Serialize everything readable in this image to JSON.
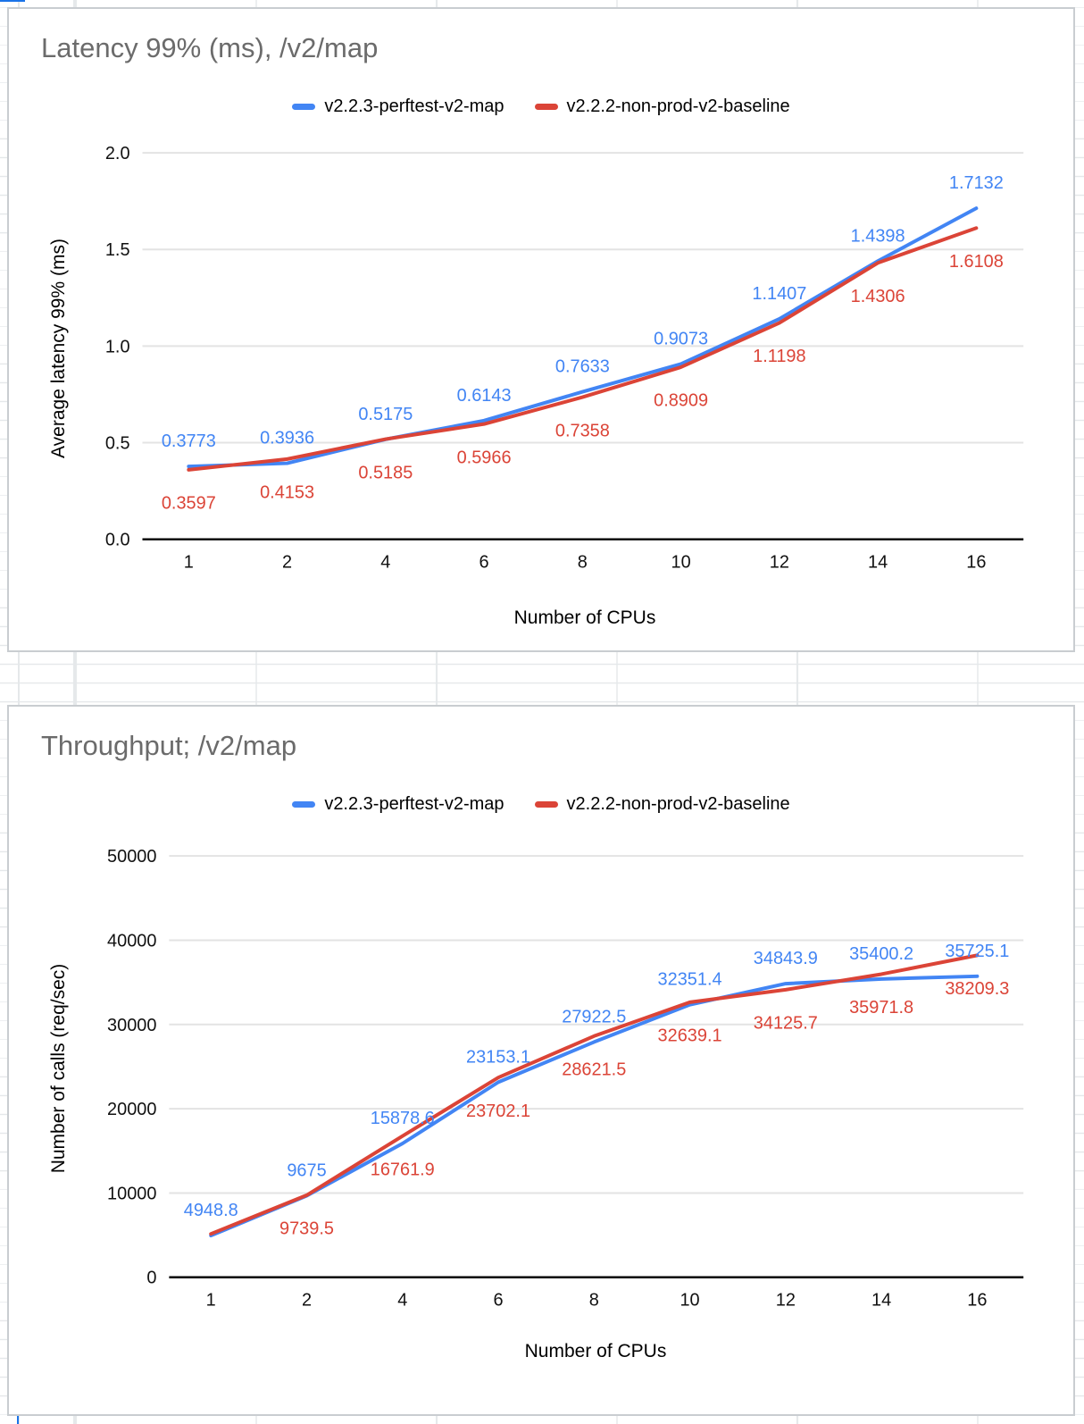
{
  "colors": {
    "series_blue": "#4285f4",
    "series_red": "#db4437",
    "title_gray": "#6b6b6b",
    "gridline": "#e3e3e3",
    "axis_black": "#000000",
    "selection_blue": "#1a73e8"
  },
  "chart_data": [
    {
      "type": "line",
      "title": "Latency 99% (ms), /v2/map",
      "xlabel": "Number of CPUs",
      "ylabel": "Average latency 99% (ms)",
      "categories": [
        "1",
        "2",
        "4",
        "6",
        "8",
        "10",
        "12",
        "14",
        "16"
      ],
      "ylim": [
        0,
        2
      ],
      "yticks": [
        0,
        0.5,
        1,
        1.5,
        2
      ],
      "ytick_labels": [
        "0.0",
        "0.5",
        "1.0",
        "1.5",
        "2.0"
      ],
      "grid": true,
      "legend_position": "top",
      "series": [
        {
          "name": "v2.2.3-perftest-v2-map",
          "color": "#4285f4",
          "label_side": "above",
          "values": [
            0.3773,
            0.3936,
            0.5175,
            0.6143,
            0.7633,
            0.9073,
            1.1407,
            1.4398,
            1.7132
          ],
          "point_labels": [
            "0.3773",
            "0.3936",
            "0.5175",
            "0.6143",
            "0.7633",
            "0.9073",
            "1.1407",
            "1.4398",
            "1.7132"
          ]
        },
        {
          "name": "v2.2.2-non-prod-v2-baseline",
          "color": "#db4437",
          "label_side": "below",
          "values": [
            0.3597,
            0.4153,
            0.5185,
            0.5966,
            0.7358,
            0.8909,
            1.1198,
            1.4306,
            1.6108
          ],
          "point_labels": [
            "0.3597",
            "0.4153",
            "0.5185",
            "0.5966",
            "0.7358",
            "0.8909",
            "1.1198",
            "1.4306",
            "1.6108"
          ]
        }
      ]
    },
    {
      "type": "line",
      "title": "Throughput; /v2/map",
      "xlabel": "Number of CPUs",
      "ylabel": "Number of calls (req/sec)",
      "categories": [
        "1",
        "2",
        "4",
        "6",
        "8",
        "10",
        "12",
        "14",
        "16"
      ],
      "ylim": [
        0,
        50000
      ],
      "yticks": [
        0,
        10000,
        20000,
        30000,
        40000,
        50000
      ],
      "ytick_labels": [
        "0",
        "10000",
        "20000",
        "30000",
        "40000",
        "50000"
      ],
      "grid": true,
      "legend_position": "top",
      "series": [
        {
          "name": "v2.2.3-perftest-v2-map",
          "color": "#4285f4",
          "label_side": "above",
          "values": [
            4948.8,
            9675,
            15878.6,
            23153.1,
            27922.5,
            32351.4,
            34843.9,
            35400.2,
            35725.1
          ],
          "point_labels": [
            "4948.8",
            "9675",
            "15878.6",
            "23153.1",
            "27922.5",
            "32351.4",
            "34843.9",
            "35400.2",
            "35725.1"
          ]
        },
        {
          "name": "v2.2.2-non-prod-v2-baseline",
          "color": "#db4437",
          "label_side": "below",
          "values": [
            5150,
            9739.5,
            16761.9,
            23702.1,
            28621.5,
            32639.1,
            34125.7,
            35971.8,
            38209.3
          ],
          "point_labels": [
            "",
            "9739.5",
            "16761.9",
            "23702.1",
            "28621.5",
            "32639.1",
            "34125.7",
            "35971.8",
            "38209.3"
          ]
        }
      ]
    }
  ]
}
